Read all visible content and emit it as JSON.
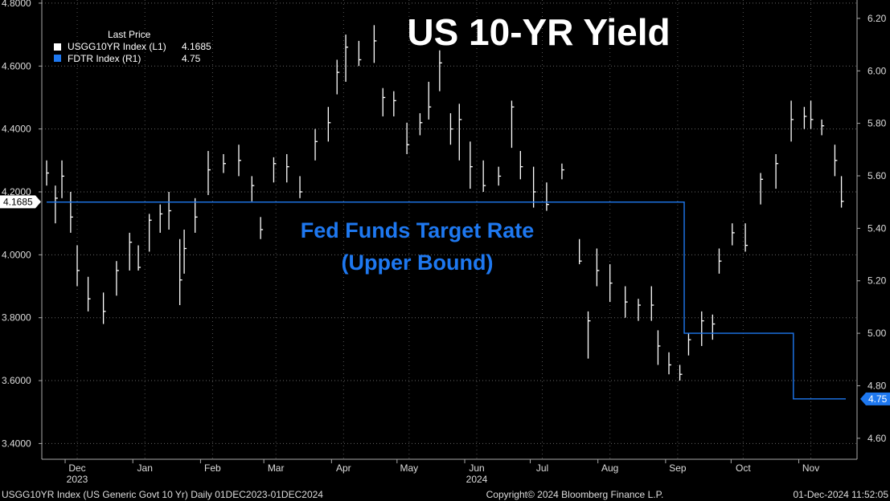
{
  "chart_data": {
    "type": "line",
    "title": "US 10-YR Yield",
    "annotation_lines": [
      "Fed Funds Target Rate",
      "(Upper Bound)"
    ],
    "legend": {
      "header": "Last Price",
      "entries": [
        {
          "name": "USGG10YR Index  (L1)",
          "value": "4.1685",
          "color": "#ffffff"
        },
        {
          "name": "FDTR Index  (R1)",
          "value": "4.75",
          "color": "#1e78f0"
        }
      ]
    },
    "left_axis": {
      "ylim": [
        3.35,
        4.81
      ],
      "ticks": [
        3.4,
        3.6,
        3.8,
        4.0,
        4.2,
        4.4,
        4.6,
        4.8
      ],
      "tick_labels": [
        "3.4000",
        "3.6000",
        "3.8000",
        "4.0000",
        "4.2000",
        "4.4000",
        "4.6000",
        "4.8000"
      ],
      "last_value_label": "4.1685",
      "last_value": 4.1685
    },
    "right_axis": {
      "ylim": [
        4.52,
        6.27
      ],
      "ticks": [
        4.6,
        4.8,
        5.0,
        5.2,
        5.4,
        5.6,
        5.8,
        6.0,
        6.2
      ],
      "tick_labels": [
        "4.60",
        "4.80",
        "5.00",
        "5.20",
        "5.40",
        "5.60",
        "5.80",
        "6.00",
        "6.20"
      ],
      "last_value_label": "4.75",
      "last_value": 4.75
    },
    "x_range": [
      "2023-12-01",
      "2024-12-01"
    ],
    "months": [
      {
        "date": "2023-12-15",
        "label": "Dec",
        "sub": "2023"
      },
      {
        "date": "2024-01-15",
        "label": "Jan",
        "sub": ""
      },
      {
        "date": "2024-02-15",
        "label": "Feb",
        "sub": ""
      },
      {
        "date": "2024-03-15",
        "label": "Mar",
        "sub": ""
      },
      {
        "date": "2024-04-15",
        "label": "Apr",
        "sub": ""
      },
      {
        "date": "2024-05-15",
        "label": "May",
        "sub": ""
      },
      {
        "date": "2024-06-15",
        "label": "Jun",
        "sub": "2024"
      },
      {
        "date": "2024-07-15",
        "label": "Jul",
        "sub": ""
      },
      {
        "date": "2024-08-15",
        "label": "Aug",
        "sub": ""
      },
      {
        "date": "2024-09-15",
        "label": "Sep",
        "sub": ""
      },
      {
        "date": "2024-10-15",
        "label": "Oct",
        "sub": ""
      },
      {
        "date": "2024-11-15",
        "label": "Nov",
        "sub": ""
      }
    ],
    "series": [
      {
        "name": "USGG10YR Index",
        "axis": "left",
        "style": "hlc-bars",
        "color": "#ffffff",
        "x": [
          "2023-12-01",
          "2023-12-05",
          "2023-12-08",
          "2023-12-12",
          "2023-12-15",
          "2023-12-20",
          "2023-12-27",
          "2024-01-02",
          "2024-01-08",
          "2024-01-12",
          "2024-01-17",
          "2024-01-22",
          "2024-01-26",
          "2024-01-31",
          "2024-02-02",
          "2024-02-07",
          "2024-02-13",
          "2024-02-20",
          "2024-02-27",
          "2024-03-04",
          "2024-03-08",
          "2024-03-14",
          "2024-03-20",
          "2024-03-26",
          "2024-04-02",
          "2024-04-08",
          "2024-04-12",
          "2024-04-16",
          "2024-04-22",
          "2024-04-29",
          "2024-05-03",
          "2024-05-08",
          "2024-05-14",
          "2024-05-20",
          "2024-05-24",
          "2024-05-29",
          "2024-06-03",
          "2024-06-07",
          "2024-06-12",
          "2024-06-18",
          "2024-06-25",
          "2024-07-01",
          "2024-07-05",
          "2024-07-11",
          "2024-07-17",
          "2024-07-24",
          "2024-08-01",
          "2024-08-05",
          "2024-08-09",
          "2024-08-15",
          "2024-08-22",
          "2024-08-28",
          "2024-09-03",
          "2024-09-06",
          "2024-09-11",
          "2024-09-16",
          "2024-09-20",
          "2024-09-26",
          "2024-10-01",
          "2024-10-04",
          "2024-10-10",
          "2024-10-16",
          "2024-10-23",
          "2024-10-30",
          "2024-11-06",
          "2024-11-12",
          "2024-11-15",
          "2024-11-20",
          "2024-11-26",
          "2024-11-29"
        ],
        "close": [
          4.26,
          4.18,
          4.25,
          4.12,
          3.95,
          3.86,
          3.82,
          3.95,
          4.04,
          3.96,
          4.11,
          4.13,
          4.14,
          3.92,
          4.02,
          4.12,
          4.27,
          4.29,
          4.3,
          4.22,
          4.08,
          4.29,
          4.28,
          4.2,
          4.36,
          4.42,
          4.58,
          4.66,
          4.62,
          4.68,
          4.5,
          4.49,
          4.35,
          4.42,
          4.47,
          4.61,
          4.4,
          4.43,
          4.28,
          4.22,
          4.25,
          4.47,
          4.28,
          4.2,
          4.16,
          4.27,
          3.98,
          3.79,
          3.95,
          3.91,
          3.85,
          3.84,
          3.84,
          3.71,
          3.65,
          3.62,
          3.73,
          3.79,
          3.78,
          3.98,
          4.07,
          4.03,
          4.24,
          4.29,
          4.43,
          4.44,
          4.43,
          4.41,
          4.3,
          4.17
        ],
        "high": [
          4.3,
          4.22,
          4.3,
          4.2,
          4.03,
          3.93,
          3.88,
          3.98,
          4.07,
          4.03,
          4.13,
          4.16,
          4.2,
          4.05,
          4.08,
          4.18,
          4.33,
          4.32,
          4.35,
          4.25,
          4.12,
          4.31,
          4.32,
          4.25,
          4.4,
          4.47,
          4.62,
          4.7,
          4.68,
          4.73,
          4.53,
          4.52,
          4.42,
          4.45,
          4.55,
          4.65,
          4.45,
          4.48,
          4.36,
          4.3,
          4.28,
          4.49,
          4.33,
          4.28,
          4.23,
          4.29,
          4.05,
          3.82,
          4.02,
          3.97,
          3.9,
          3.86,
          3.9,
          3.76,
          3.69,
          3.65,
          3.75,
          3.82,
          3.81,
          4.02,
          4.1,
          4.1,
          4.26,
          4.32,
          4.49,
          4.47,
          4.49,
          4.43,
          4.35,
          4.25
        ],
        "low": [
          4.22,
          4.1,
          4.18,
          4.07,
          3.9,
          3.82,
          3.78,
          3.87,
          3.95,
          3.95,
          4.01,
          4.07,
          4.08,
          3.84,
          3.94,
          4.07,
          4.19,
          4.26,
          4.25,
          4.17,
          4.05,
          4.23,
          4.23,
          4.18,
          4.3,
          4.36,
          4.51,
          4.55,
          4.6,
          4.61,
          4.44,
          4.44,
          4.32,
          4.38,
          4.43,
          4.52,
          4.35,
          4.3,
          4.21,
          4.2,
          4.22,
          4.34,
          4.24,
          4.15,
          4.14,
          4.24,
          3.97,
          3.67,
          3.9,
          3.85,
          3.8,
          3.79,
          3.79,
          3.65,
          3.62,
          3.6,
          3.68,
          3.71,
          3.73,
          3.94,
          4.03,
          4.01,
          4.16,
          4.21,
          4.36,
          4.4,
          4.4,
          4.38,
          4.25,
          4.15
        ]
      },
      {
        "name": "FDTR Index",
        "axis": "right",
        "style": "step",
        "color": "#1e78f0",
        "x": [
          "2023-12-01",
          "2024-09-18",
          "2024-11-07",
          "2024-12-01"
        ],
        "y": [
          5.5,
          5.0,
          4.75,
          4.75
        ]
      }
    ],
    "grid": true,
    "legend_position": "top-left"
  },
  "footer": {
    "left": "USGG10YR Index (US Generic Govt 10 Yr)  Daily 01DEC2023-01DEC2024",
    "center": "Copyright© 2024 Bloomberg Finance L.P.",
    "right": "01-Dec-2024 11:52:05"
  }
}
